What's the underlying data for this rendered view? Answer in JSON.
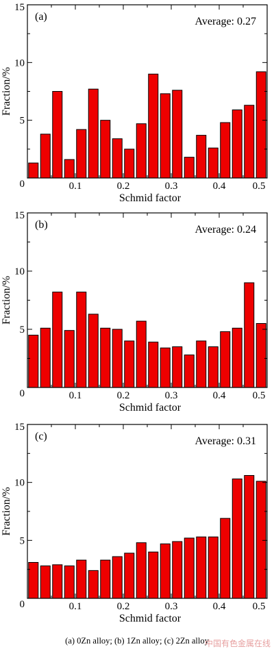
{
  "chart_data": [
    {
      "type": "bar",
      "panel_label": "(a)",
      "annotation": "Average: 0.27",
      "xlabel": "Schmid factor",
      "ylabel": "Fraction/%",
      "xlim": [
        0,
        0.5
      ],
      "ylim": [
        0,
        15
      ],
      "xticks": [
        "0.1",
        "0.2",
        "0.3",
        "0.4",
        "0.5"
      ],
      "yticks": [
        "0",
        "5",
        "10",
        "15"
      ],
      "x": [
        0.0125,
        0.0375,
        0.0625,
        0.0875,
        0.1125,
        0.1375,
        0.1625,
        0.1875,
        0.2125,
        0.2375,
        0.2625,
        0.2875,
        0.3125,
        0.3375,
        0.3625,
        0.3875,
        0.4125,
        0.4375,
        0.4625,
        0.4875
      ],
      "values": [
        1.3,
        3.8,
        7.5,
        1.6,
        4.2,
        7.7,
        5.0,
        3.4,
        2.5,
        4.7,
        9.0,
        7.3,
        7.6,
        1.8,
        3.7,
        2.6,
        4.8,
        5.9,
        6.3,
        9.2
      ],
      "grid": false
    },
    {
      "type": "bar",
      "panel_label": "(b)",
      "annotation": "Average: 0.24",
      "xlabel": "Schmid factor",
      "ylabel": "Fraction/%",
      "xlim": [
        0,
        0.5
      ],
      "ylim": [
        0,
        15
      ],
      "xticks": [
        "0.1",
        "0.2",
        "0.3",
        "0.4",
        "0.5"
      ],
      "yticks": [
        "0",
        "5",
        "10",
        "15"
      ],
      "x": [
        0.0125,
        0.0375,
        0.0625,
        0.0875,
        0.1125,
        0.1375,
        0.1625,
        0.1875,
        0.2125,
        0.2375,
        0.2625,
        0.2875,
        0.3125,
        0.3375,
        0.3625,
        0.3875,
        0.4125,
        0.4375,
        0.4625,
        0.4875
      ],
      "values": [
        4.5,
        5.1,
        8.2,
        4.9,
        8.2,
        6.3,
        5.1,
        5.0,
        4.0,
        5.7,
        3.9,
        3.4,
        3.5,
        2.8,
        4.0,
        3.5,
        4.8,
        5.1,
        9.0,
        5.5
      ],
      "grid": false
    },
    {
      "type": "bar",
      "panel_label": "(c)",
      "annotation": "Average: 0.31",
      "xlabel": "Schmid factor",
      "ylabel": "Fraction/%",
      "xlim": [
        0,
        0.5
      ],
      "ylim": [
        0,
        15
      ],
      "xticks": [
        "0.1",
        "0.2",
        "0.3",
        "0.4",
        "0.5"
      ],
      "yticks": [
        "0",
        "5",
        "10",
        "15"
      ],
      "x": [
        0.0125,
        0.0375,
        0.0625,
        0.0875,
        0.1125,
        0.1375,
        0.1625,
        0.1875,
        0.2125,
        0.2375,
        0.2625,
        0.2875,
        0.3125,
        0.3375,
        0.3625,
        0.3875,
        0.4125,
        0.4375,
        0.4625,
        0.4875
      ],
      "values": [
        3.1,
        2.8,
        2.9,
        2.8,
        3.3,
        2.4,
        3.3,
        3.6,
        3.9,
        4.8,
        4.0,
        4.7,
        4.9,
        5.2,
        5.3,
        5.3,
        6.9,
        10.3,
        10.6,
        10.1
      ],
      "grid": false
    }
  ],
  "caption": "(a) 0Zn alloy; (b) 1Zn alloy; (c) 2Zn alloy",
  "watermark": "中国有色金属在线",
  "colors": {
    "bar": "#ee0000",
    "edge": "#000000"
  }
}
